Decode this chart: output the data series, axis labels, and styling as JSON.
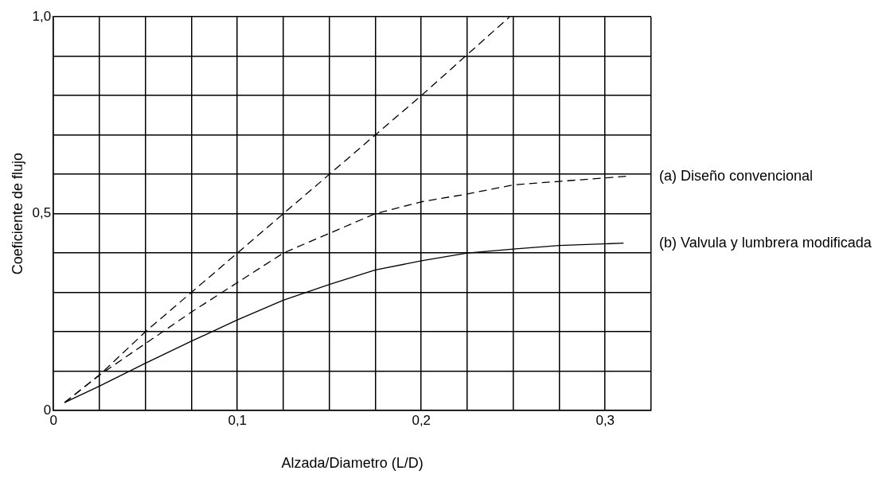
{
  "chart_data": {
    "type": "line",
    "xlabel": "Alzada/Diametro (L/D)",
    "ylabel": "Coeficiente de flujo",
    "xlim": [
      0,
      0.325
    ],
    "ylim": [
      0,
      1
    ],
    "xticks": [
      0,
      {
        "value": 0.025,
        "label": null
      },
      {
        "value": 0.05,
        "label": null
      },
      {
        "value": 0.075,
        "label": null
      },
      {
        "value": 0.1,
        "label": "0,1"
      },
      {
        "value": 0.125,
        "label": null
      },
      {
        "value": 0.15,
        "label": null
      },
      {
        "value": 0.175,
        "label": null
      },
      {
        "value": 0.2,
        "label": "0,2"
      },
      {
        "value": 0.225,
        "label": null
      },
      {
        "value": 0.25,
        "label": null
      },
      {
        "value": 0.275,
        "label": null
      },
      {
        "value": 0.3,
        "label": "0,3"
      },
      {
        "value": 0.325,
        "label": null
      }
    ],
    "yticks": [
      0,
      {
        "value": 0.1,
        "label": null
      },
      {
        "value": 0.2,
        "label": null
      },
      {
        "value": 0.3,
        "label": null
      },
      {
        "value": 0.4,
        "label": null
      },
      {
        "value": 0.5,
        "label": "0,5"
      },
      {
        "value": 0.6,
        "label": null
      },
      {
        "value": 0.7,
        "label": null
      },
      {
        "value": 0.8,
        "label": null
      },
      {
        "value": 0.9,
        "label": null
      },
      {
        "value": 1,
        "label": "1,0"
      }
    ],
    "grid": true,
    "series": [
      {
        "color": "#000000",
        "line_style": "dashed",
        "x": [
          0.006,
          0.025,
          0.05,
          0.1,
          0.15,
          0.2,
          0.248
        ],
        "values": [
          0.02,
          0.09,
          0.2,
          0.4,
          0.6,
          0.8,
          1.0
        ]
      },
      {
        "name": "(a) Diseño convencional",
        "color": "#000000",
        "line_style": "dashed",
        "x": [
          0.006,
          0.025,
          0.05,
          0.075,
          0.1,
          0.125,
          0.15,
          0.175,
          0.2,
          0.225,
          0.25,
          0.275,
          0.312
        ],
        "values": [
          0.02,
          0.09,
          0.17,
          0.25,
          0.325,
          0.4,
          0.45,
          0.5,
          0.53,
          0.55,
          0.573,
          0.582,
          0.595
        ]
      },
      {
        "name": "(b) Valvula y lumbrera modificada",
        "color": "#000000",
        "line_style": "solid",
        "x": [
          0.006,
          0.025,
          0.05,
          0.075,
          0.1,
          0.125,
          0.15,
          0.175,
          0.2,
          0.225,
          0.25,
          0.275,
          0.31
        ],
        "values": [
          0.02,
          0.062,
          0.12,
          0.176,
          0.23,
          0.28,
          0.32,
          0.357,
          0.38,
          0.4,
          0.41,
          0.419,
          0.425
        ]
      }
    ]
  }
}
